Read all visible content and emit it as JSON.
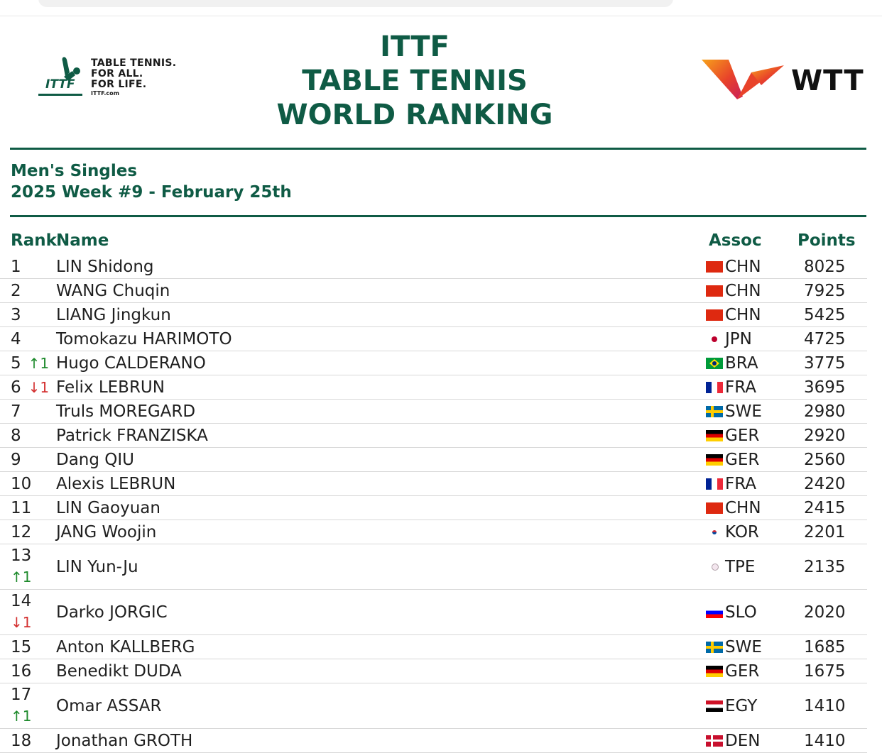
{
  "ittf_logo": {
    "mark": "ITTF",
    "tagline": [
      "TABLE TENNIS.",
      "FOR ALL.",
      "FOR LIFE."
    ],
    "site": "ITTF.com",
    "color": "#0f5b45"
  },
  "title": [
    "ITTF",
    "TABLE TENNIS",
    "WORLD RANKING"
  ],
  "wtt_logo": {
    "text": "WTT",
    "colors": [
      "#f7a21b",
      "#e8432a",
      "#c81e5b"
    ]
  },
  "subtitle": {
    "category": "Men's Singles",
    "week": "2025 Week #9 - February 25th"
  },
  "table": {
    "headers": {
      "rank": "Rank",
      "name": "Name",
      "assoc": "Assoc",
      "points": "Points"
    },
    "rows": [
      {
        "rank": "1",
        "move": "",
        "dir": "",
        "name": "LIN Shidong",
        "assoc": "CHN",
        "points": "8025"
      },
      {
        "rank": "2",
        "move": "",
        "dir": "",
        "name": "WANG Chuqin",
        "assoc": "CHN",
        "points": "7925"
      },
      {
        "rank": "3",
        "move": "",
        "dir": "",
        "name": "LIANG Jingkun",
        "assoc": "CHN",
        "points": "5425"
      },
      {
        "rank": "4",
        "move": "",
        "dir": "",
        "name": "Tomokazu HARIMOTO",
        "assoc": "JPN",
        "points": "4725"
      },
      {
        "rank": "5",
        "move": "↑1",
        "dir": "up",
        "name": "Hugo CALDERANO",
        "assoc": "BRA",
        "points": "3775"
      },
      {
        "rank": "6",
        "move": "↓1",
        "dir": "down",
        "name": "Felix LEBRUN",
        "assoc": "FRA",
        "points": "3695"
      },
      {
        "rank": "7",
        "move": "",
        "dir": "",
        "name": "Truls MOREGARD",
        "assoc": "SWE",
        "points": "2980"
      },
      {
        "rank": "8",
        "move": "",
        "dir": "",
        "name": "Patrick FRANZISKA",
        "assoc": "GER",
        "points": "2920"
      },
      {
        "rank": "9",
        "move": "",
        "dir": "",
        "name": "Dang QIU",
        "assoc": "GER",
        "points": "2560"
      },
      {
        "rank": "10",
        "move": "",
        "dir": "",
        "name": "Alexis LEBRUN",
        "assoc": "FRA",
        "points": "2420"
      },
      {
        "rank": "11",
        "move": "",
        "dir": "",
        "name": "LIN Gaoyuan",
        "assoc": "CHN",
        "points": "2415"
      },
      {
        "rank": "12",
        "move": "",
        "dir": "",
        "name": "JANG Woojin",
        "assoc": "KOR",
        "points": "2201"
      },
      {
        "rank": "13",
        "move": "↑1",
        "dir": "up",
        "name": "LIN Yun-Ju",
        "assoc": "TPE",
        "points": "2135"
      },
      {
        "rank": "14",
        "move": "↓1",
        "dir": "down",
        "name": "Darko JORGIC",
        "assoc": "SLO",
        "points": "2020"
      },
      {
        "rank": "15",
        "move": "",
        "dir": "",
        "name": "Anton KALLBERG",
        "assoc": "SWE",
        "points": "1685"
      },
      {
        "rank": "16",
        "move": "",
        "dir": "",
        "name": "Benedikt DUDA",
        "assoc": "GER",
        "points": "1675"
      },
      {
        "rank": "17",
        "move": "↑1",
        "dir": "up",
        "name": "Omar ASSAR",
        "assoc": "EGY",
        "points": "1410"
      },
      {
        "rank": "18",
        "move": "",
        "dir": "",
        "name": "Jonathan GROTH",
        "assoc": "DEN",
        "points": "1410"
      }
    ]
  }
}
